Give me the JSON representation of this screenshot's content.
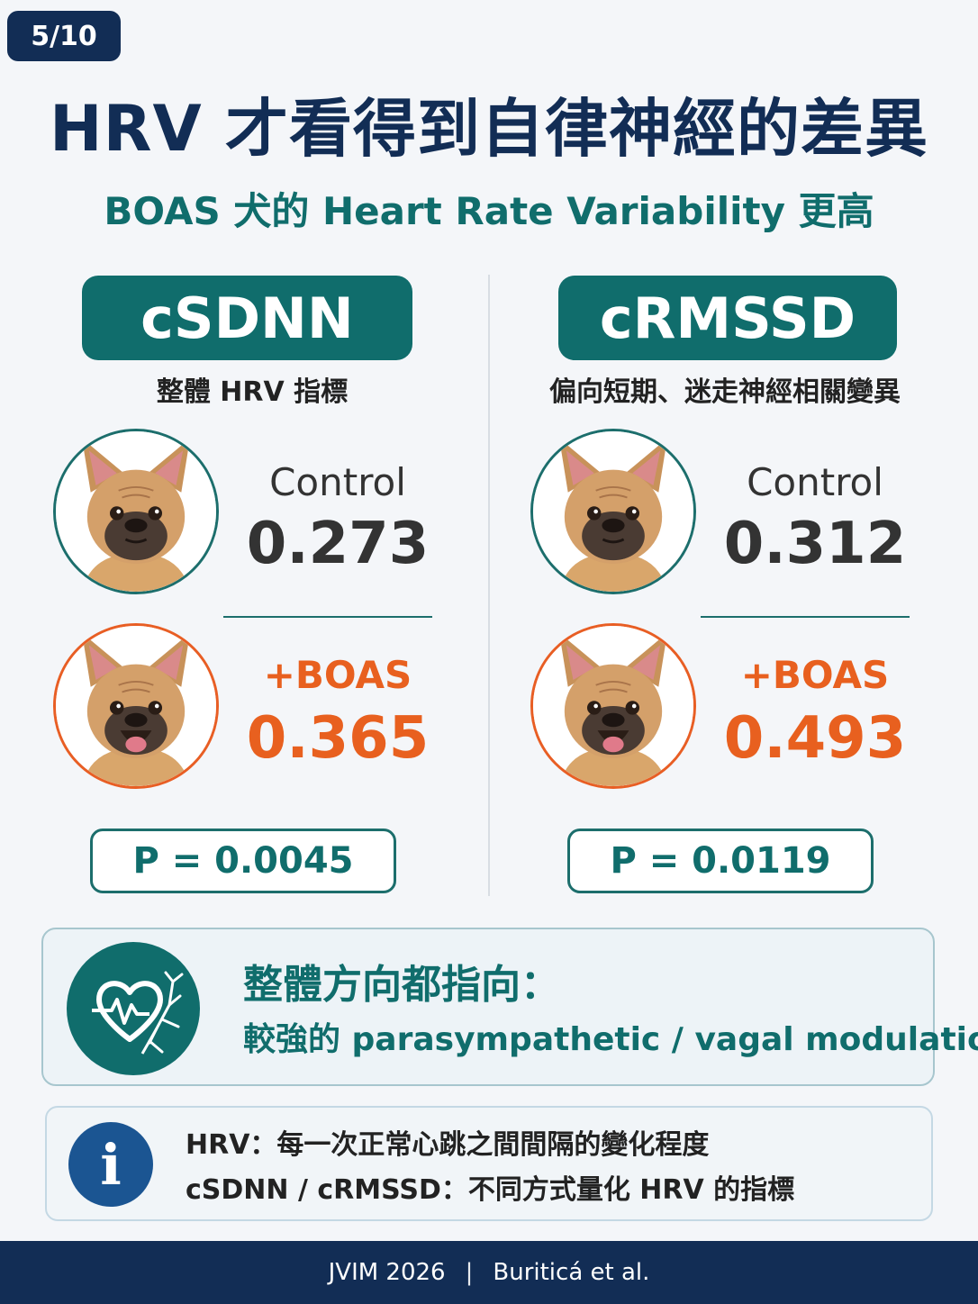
{
  "page_indicator": "5/10",
  "title": "HRV 才看得到自律神經的差異",
  "subtitle": "BOAS 犬的 Heart Rate Variability 更高",
  "metrics": [
    {
      "name": "cSDNN",
      "description": "整體 HRV 指標",
      "control_label": "Control",
      "control_value": "0.273",
      "boas_label": "+BOAS",
      "boas_value": "0.365",
      "p_value": "P = 0.0045"
    },
    {
      "name": "cRMSSD",
      "description": "偏向短期、迷走神經相關變異",
      "control_label": "Control",
      "control_value": "0.312",
      "boas_label": "+BOAS",
      "boas_value": "0.493",
      "p_value": "P = 0.0119"
    }
  ],
  "summary": {
    "icon": "heart-pulse-nerve-icon",
    "line1": "整體方向都指向：",
    "line2": "較強的 parasympathetic / vagal modulation"
  },
  "info": {
    "icon": "info-icon",
    "icon_glyph": "i",
    "line1": "HRV：每一次正常心跳之間間隔的變化程度",
    "line2": "cSDNN / cRMSSD：不同方式量化 HRV 的指標"
  },
  "footer": {
    "journal": "JVIM 2026",
    "separator": "|",
    "authors": "Buriticá et al."
  },
  "colors": {
    "navy": "#122d55",
    "teal": "#106d6c",
    "orange": "#e8601f",
    "info_blue": "#1b5592"
  }
}
